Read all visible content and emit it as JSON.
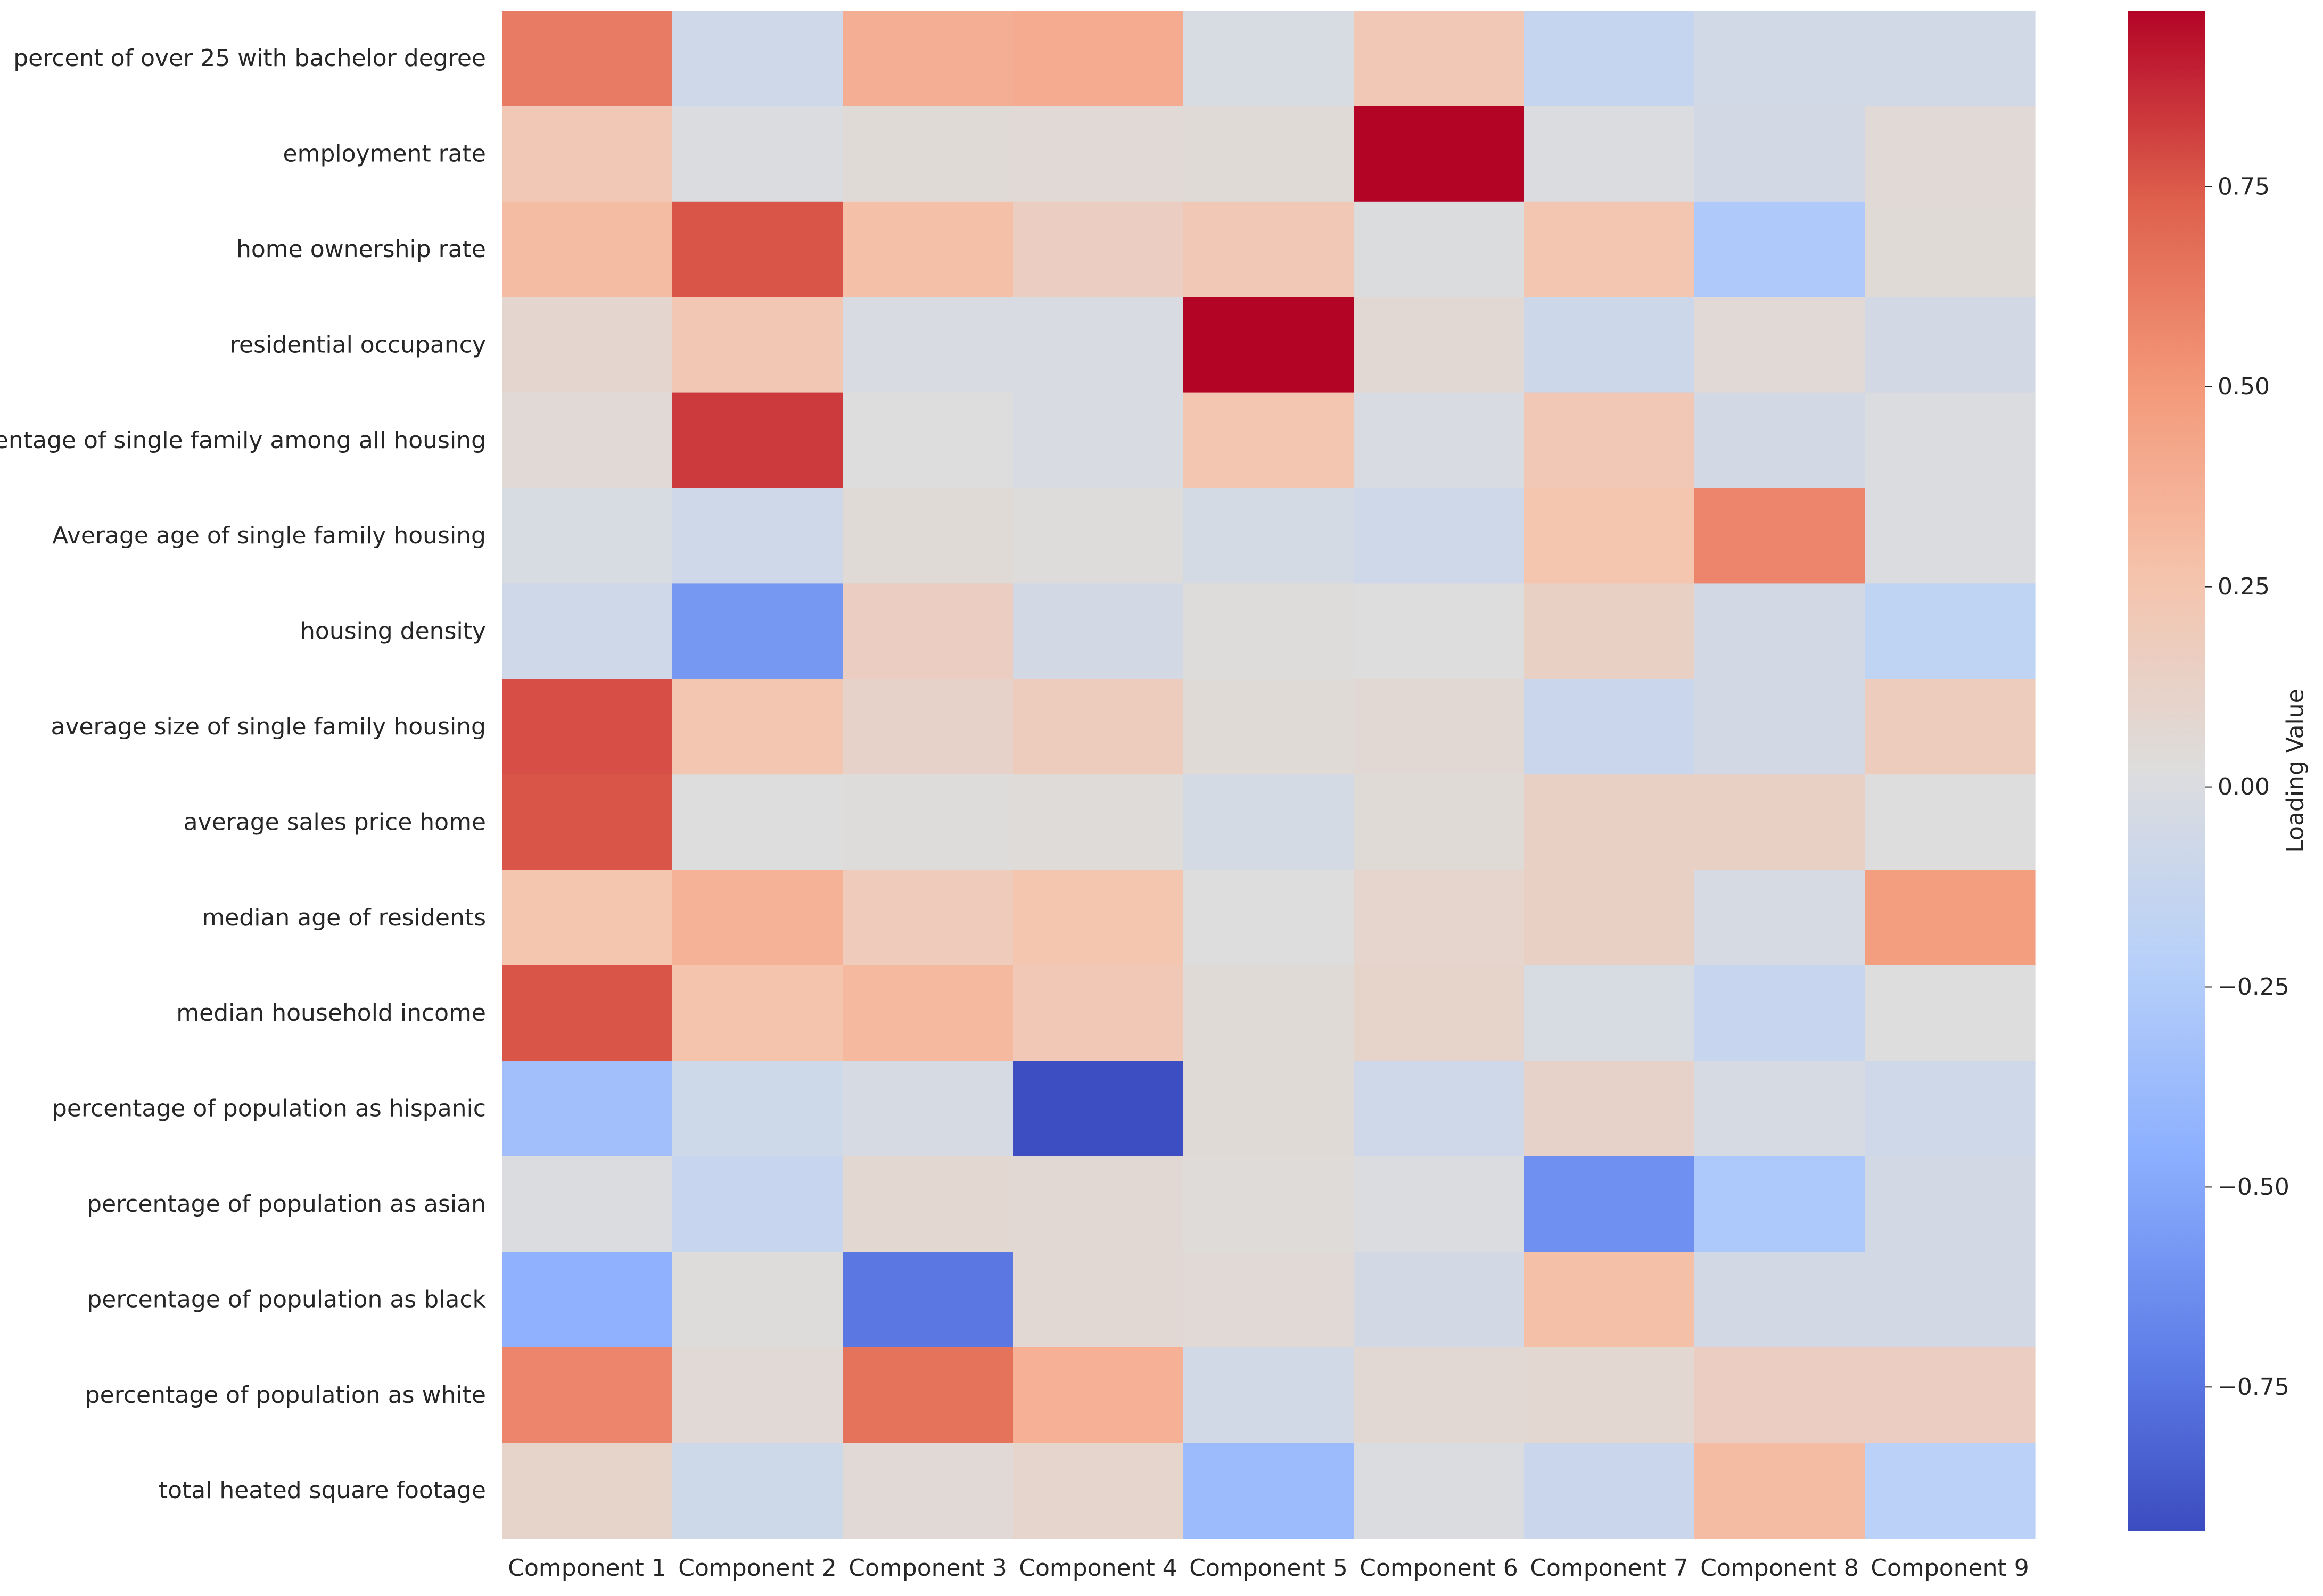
{
  "chart_data": {
    "type": "heatmap",
    "title": "",
    "xlabel": "",
    "ylabel": "",
    "colormap": "coolwarm",
    "vmin": -0.93,
    "vmax": 0.97,
    "colorbar": {
      "label": "Loading Value",
      "ticks": [
        0.75,
        0.5,
        0.25,
        0.0,
        -0.25,
        -0.5,
        -0.75
      ],
      "tick_labels": [
        "0.75",
        "0.50",
        "0.25",
        "0.00",
        "−0.25",
        "−0.50",
        "−0.75"
      ]
    },
    "columns": [
      "Component 1",
      "Component 2",
      "Component 3",
      "Component 4",
      "Component 5",
      "Component 6",
      "Component 7",
      "Component 8",
      "Component 9"
    ],
    "rows": [
      "percent of over 25 with bachelor degree",
      "employment rate",
      "home ownership rate",
      "residential occupancy",
      "percentage of single family among all housing",
      "Average age of single family housing",
      "housing density",
      "average size of single family housing",
      "average sales price home",
      "median age of residents",
      "median household income",
      "percentage of population as hispanic",
      "percentage of population as asian",
      "percentage of population as black",
      "percentage of population as white",
      "total heated square footage"
    ],
    "values": [
      [
        0.62,
        -0.07,
        0.38,
        0.4,
        -0.02,
        0.22,
        -0.13,
        -0.06,
        -0.06
      ],
      [
        0.22,
        0.0,
        0.05,
        0.06,
        0.05,
        0.97,
        0.0,
        -0.05,
        0.06
      ],
      [
        0.3,
        0.76,
        0.28,
        0.16,
        0.22,
        0.01,
        0.24,
        -0.27,
        0.05
      ],
      [
        0.09,
        0.23,
        -0.01,
        -0.01,
        0.97,
        0.07,
        -0.09,
        0.06,
        -0.05
      ],
      [
        0.06,
        0.83,
        0.02,
        -0.01,
        0.24,
        -0.01,
        0.22,
        -0.05,
        0.0
      ],
      [
        -0.02,
        -0.07,
        0.05,
        0.03,
        -0.04,
        -0.07,
        0.25,
        0.58,
        0.0
      ],
      [
        -0.07,
        -0.58,
        0.16,
        -0.05,
        0.03,
        0.02,
        0.14,
        -0.05,
        -0.17
      ],
      [
        0.78,
        0.24,
        0.12,
        0.18,
        0.05,
        0.07,
        -0.11,
        -0.05,
        0.18
      ],
      [
        0.76,
        0.02,
        0.03,
        0.04,
        -0.04,
        0.05,
        0.14,
        0.14,
        0.02
      ],
      [
        0.25,
        0.36,
        0.19,
        0.25,
        0.02,
        0.1,
        0.14,
        -0.03,
        0.47
      ],
      [
        0.76,
        0.26,
        0.32,
        0.22,
        0.05,
        0.11,
        -0.02,
        -0.12,
        0.02
      ],
      [
        -0.34,
        -0.08,
        -0.03,
        -0.92,
        0.05,
        -0.07,
        0.12,
        -0.03,
        -0.07
      ],
      [
        0.0,
        -0.12,
        0.08,
        0.07,
        0.04,
        0.0,
        -0.62,
        -0.28,
        -0.05
      ],
      [
        -0.44,
        0.03,
        -0.74,
        0.07,
        0.06,
        -0.05,
        0.28,
        -0.05,
        -0.05
      ],
      [
        0.58,
        0.06,
        0.66,
        0.37,
        -0.06,
        0.07,
        0.08,
        0.16,
        0.16
      ],
      [
        0.11,
        -0.08,
        0.06,
        0.1,
        -0.37,
        0.0,
        -0.1,
        0.3,
        -0.2
      ]
    ]
  }
}
